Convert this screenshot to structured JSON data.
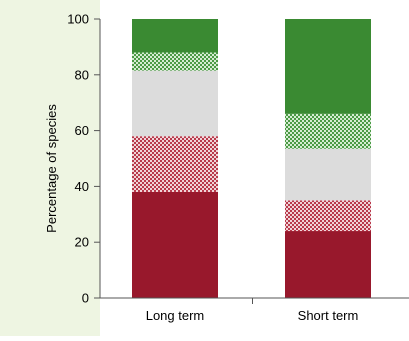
{
  "colors": {
    "panel_bg": "#eef5e2",
    "plot_bg": "#ffffff",
    "dark_red": "#98182c",
    "light_red": "#c85a6a",
    "grey": "#dcdcdc",
    "light_green": "#5fa85a",
    "dark_green": "#3a8a32",
    "axis": "#555555"
  },
  "chart_data": {
    "type": "bar",
    "stacked": true,
    "categories": [
      "Long term",
      "Short term"
    ],
    "ylabel": "Percentage of species",
    "xlabel": "",
    "ylim": [
      0,
      100
    ],
    "yticks": [
      0,
      20,
      40,
      60,
      80,
      100
    ],
    "series": [
      {
        "values": [
          38,
          24
        ],
        "color": "dark_red",
        "pattern": "solid"
      },
      {
        "values": [
          20,
          11
        ],
        "color": "light_red",
        "pattern": "checker"
      },
      {
        "values": [
          23.5,
          18.5
        ],
        "color": "grey",
        "pattern": "solid"
      },
      {
        "values": [
          6.5,
          12.5
        ],
        "color": "light_green",
        "pattern": "checker"
      },
      {
        "values": [
          12,
          34
        ],
        "color": "dark_green",
        "pattern": "solid"
      }
    ],
    "grid": false,
    "legend": "none"
  }
}
